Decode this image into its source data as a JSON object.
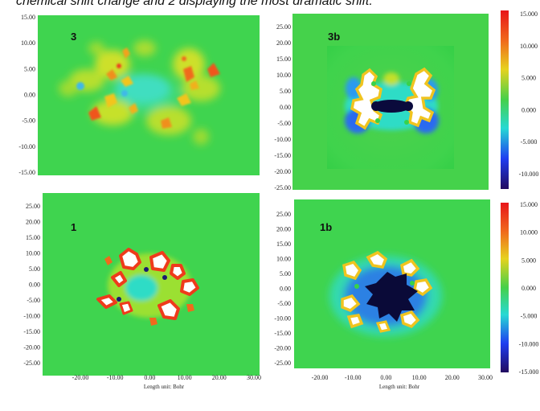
{
  "caption": "chemical shift change and 2 displaying the most dramatic shift.",
  "axis_unit": "Length unit: Bohr",
  "chart_data": [
    {
      "type": "heatmap",
      "label": "3",
      "xlim": [
        -15,
        15
      ],
      "ylim": [
        -15,
        15
      ],
      "y_ticks": [
        "15.00",
        "10.00",
        "5.00",
        "0.00",
        "-5.00",
        "-10.00",
        "-15.00"
      ]
    },
    {
      "type": "heatmap",
      "label": "3b",
      "xlim": [
        -25,
        25
      ],
      "ylim": [
        -25,
        25
      ],
      "y_ticks": [
        "25.00",
        "20.00",
        "15.00",
        "10.00",
        "5.00",
        "0.00",
        "-5.00",
        "-10.00",
        "-15.00",
        "-20.00",
        "-25.00"
      ],
      "colorbar_ticks": [
        "15.000",
        "10.000",
        "5.000",
        "0.000",
        "-5.000",
        "-10.000"
      ],
      "colorbar_range": [
        -15,
        15
      ]
    },
    {
      "type": "heatmap",
      "label": "1",
      "xlim": [
        -30,
        30
      ],
      "ylim": [
        -25,
        25
      ],
      "y_ticks": [
        "25.00",
        "20.00",
        "15.00",
        "10.00",
        "5.00",
        "0.00",
        "-5.00",
        "-10.00",
        "-15.00",
        "-20.00",
        "-25.00"
      ],
      "x_ticks": [
        "-20.00",
        "-10.00",
        "0.00",
        "10.00",
        "20.00",
        "30.00"
      ]
    },
    {
      "type": "heatmap",
      "label": "1b",
      "xlim": [
        -30,
        30
      ],
      "ylim": [
        -25,
        25
      ],
      "y_ticks": [
        "25.00",
        "20.00",
        "15.00",
        "10.00",
        "5.00",
        "0.00",
        "-5.00",
        "-10.00",
        "-15.00",
        "-20.00",
        "-25.00"
      ],
      "x_ticks": [
        "-20.00",
        "-10.00",
        "0.00",
        "10.00",
        "20.00",
        "30.00"
      ],
      "colorbar_ticks": [
        "15.000",
        "10.000",
        "5.000",
        "0.000",
        "-5.000",
        "-10.000",
        "-15.000"
      ],
      "colorbar_range": [
        -15,
        15
      ]
    }
  ]
}
